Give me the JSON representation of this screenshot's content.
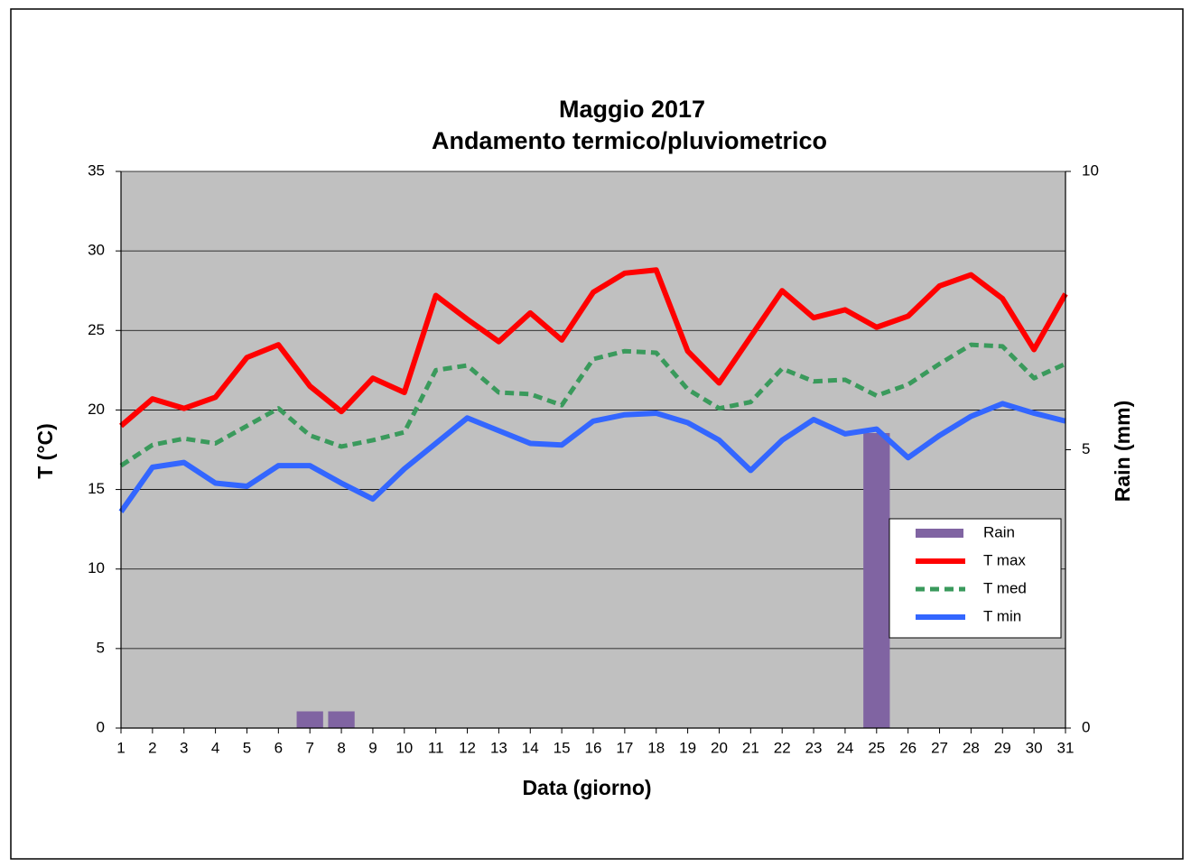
{
  "chart_data": {
    "type": "line",
    "title": "Maggio 2017",
    "subtitle": "Andamento termico/pluviometrico",
    "xlabel": "Data (giorno)",
    "ylabel": "T (°C)",
    "y2label": "Rain (mm)",
    "x": [
      1,
      2,
      3,
      4,
      5,
      6,
      7,
      8,
      9,
      10,
      11,
      12,
      13,
      14,
      15,
      16,
      17,
      18,
      19,
      20,
      21,
      22,
      23,
      24,
      25,
      26,
      27,
      28,
      29,
      30,
      31
    ],
    "xlim": [
      1,
      31
    ],
    "xticks": [
      1,
      2,
      3,
      4,
      5,
      6,
      7,
      8,
      9,
      10,
      11,
      12,
      13,
      14,
      15,
      16,
      17,
      18,
      19,
      20,
      21,
      22,
      23,
      24,
      25,
      26,
      27,
      28,
      29,
      30,
      31
    ],
    "ylim": [
      0,
      35
    ],
    "yticks": [
      0,
      5,
      10,
      15,
      20,
      25,
      30,
      35
    ],
    "y2lim": [
      0,
      10
    ],
    "y2ticks": [
      0,
      5,
      10
    ],
    "grid": true,
    "legend": "right",
    "series": [
      {
        "name": "Rain",
        "type": "bar",
        "axis": "y2",
        "color": "#8064a2",
        "values": [
          0,
          0,
          0,
          0,
          0,
          0,
          0.3,
          0.3,
          0,
          0,
          0,
          0,
          0,
          0,
          0,
          0,
          0,
          0,
          0,
          0,
          0,
          0,
          0,
          0,
          5.3,
          0,
          0,
          0,
          0,
          0,
          0
        ]
      },
      {
        "name": "T max",
        "color": "#ff0000",
        "values": [
          19.0,
          20.7,
          20.1,
          20.8,
          23.3,
          24.1,
          21.5,
          19.9,
          22.0,
          21.1,
          27.2,
          25.7,
          24.3,
          26.1,
          24.4,
          27.4,
          28.6,
          28.8,
          23.7,
          21.7,
          24.6,
          27.5,
          25.8,
          26.3,
          25.2,
          25.9,
          27.8,
          28.5,
          27.0,
          23.8,
          27.3
        ]
      },
      {
        "name": "T med",
        "color": "#3a9a5c",
        "dashed": true,
        "values": [
          16.5,
          17.8,
          18.2,
          17.9,
          19.0,
          20.1,
          18.4,
          17.7,
          18.1,
          18.6,
          22.5,
          22.8,
          21.1,
          21.0,
          20.3,
          23.2,
          23.7,
          23.6,
          21.3,
          20.1,
          20.5,
          22.6,
          21.8,
          21.9,
          20.9,
          21.6,
          22.9,
          24.1,
          24.0,
          22.0,
          22.9
        ]
      },
      {
        "name": "T min",
        "color": "#3366ff",
        "values": [
          13.6,
          16.4,
          16.7,
          15.4,
          15.2,
          16.5,
          16.5,
          15.4,
          14.4,
          16.3,
          17.9,
          19.5,
          18.7,
          17.9,
          17.8,
          19.3,
          19.7,
          19.8,
          19.2,
          18.1,
          16.2,
          18.1,
          19.4,
          18.5,
          18.8,
          17.0,
          18.4,
          19.6,
          20.4,
          19.8,
          19.3
        ]
      }
    ]
  }
}
